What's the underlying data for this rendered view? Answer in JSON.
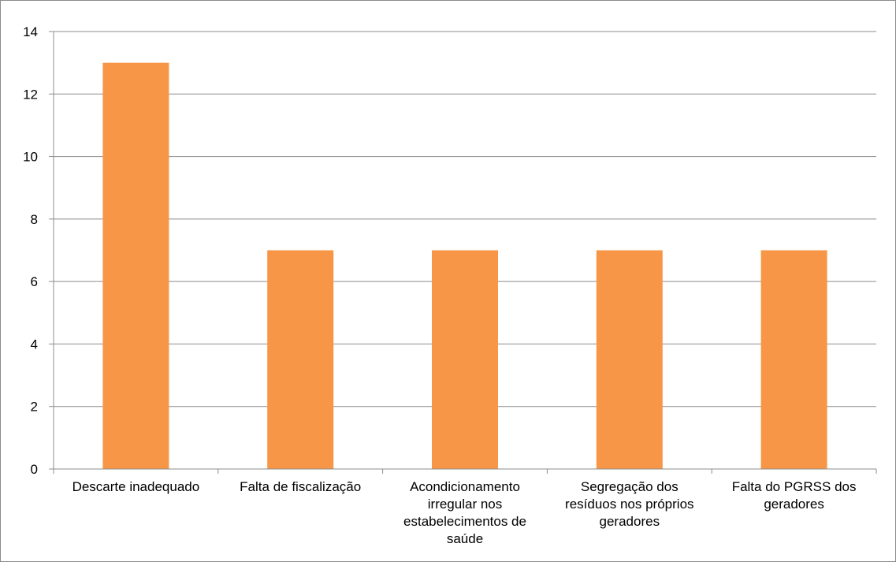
{
  "chart_data": {
    "type": "bar",
    "categories": [
      "Descarte inadequado",
      "Falta de fiscalização",
      "Acondicionamento irregular nos estabelecimentos de saúde",
      "Segregação dos resíduos nos próprios geradores",
      "Falta do PGRSS dos geradores"
    ],
    "category_lines": [
      [
        "Descarte inadequado"
      ],
      [
        "Falta de fiscalização"
      ],
      [
        "Acondicionamento",
        "irregular nos",
        "estabelecimentos de",
        "saúde"
      ],
      [
        "Segregação dos",
        "resíduos nos próprios",
        "geradores"
      ],
      [
        "Falta do PGRSS dos",
        "geradores"
      ]
    ],
    "values": [
      13,
      7,
      7,
      7,
      7
    ],
    "ylim": [
      0,
      14
    ],
    "yticks": [
      "0",
      "2",
      "4",
      "6",
      "8",
      "10",
      "12",
      "14"
    ],
    "title": "",
    "xlabel": "",
    "ylabel": "",
    "grid": true,
    "legend": "none",
    "bar_color": "#f79646",
    "grid_color": "#8c8c8c"
  }
}
